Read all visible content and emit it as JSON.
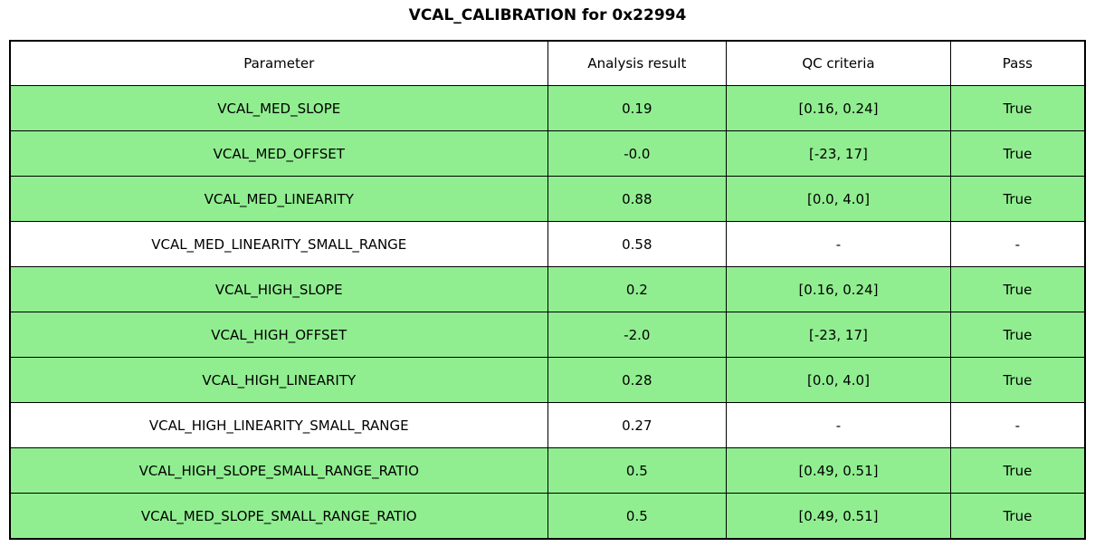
{
  "figure": {
    "title": "VCAL_CALIBRATION for 0x22994"
  },
  "chart_data": {
    "type": "table",
    "title": "VCAL_CALIBRATION for 0x22994",
    "columns": [
      "Parameter",
      "Analysis result",
      "QC criteria",
      "Pass"
    ],
    "rows": [
      {
        "cells": [
          "VCAL_MED_SLOPE",
          "0.19",
          "[0.16, 0.24]",
          "True"
        ],
        "highlight": true
      },
      {
        "cells": [
          "VCAL_MED_OFFSET",
          "-0.0",
          "[-23, 17]",
          "True"
        ],
        "highlight": true
      },
      {
        "cells": [
          "VCAL_MED_LINEARITY",
          "0.88",
          "[0.0, 4.0]",
          "True"
        ],
        "highlight": true
      },
      {
        "cells": [
          "VCAL_MED_LINEARITY_SMALL_RANGE",
          "0.58",
          "-",
          "-"
        ],
        "highlight": false
      },
      {
        "cells": [
          "VCAL_HIGH_SLOPE",
          "0.2",
          "[0.16, 0.24]",
          "True"
        ],
        "highlight": true
      },
      {
        "cells": [
          "VCAL_HIGH_OFFSET",
          "-2.0",
          "[-23, 17]",
          "True"
        ],
        "highlight": true
      },
      {
        "cells": [
          "VCAL_HIGH_LINEARITY",
          "0.28",
          "[0.0, 4.0]",
          "True"
        ],
        "highlight": true
      },
      {
        "cells": [
          "VCAL_HIGH_LINEARITY_SMALL_RANGE",
          "0.27",
          "-",
          "-"
        ],
        "highlight": false
      },
      {
        "cells": [
          "VCAL_HIGH_SLOPE_SMALL_RANGE_RATIO",
          "0.5",
          "[0.49, 0.51]",
          "True"
        ],
        "highlight": true
      },
      {
        "cells": [
          "VCAL_MED_SLOPE_SMALL_RANGE_RATIO",
          "0.5",
          "[0.49, 0.51]",
          "True"
        ],
        "highlight": true
      }
    ],
    "colors": {
      "pass_row_bg": "#90EE90",
      "default_row_bg": "#FFFFFF",
      "border": "#000000",
      "text": "#000000"
    },
    "layout": {
      "header_bg": "#FFFFFF",
      "text_align": "center",
      "grid": true
    }
  }
}
